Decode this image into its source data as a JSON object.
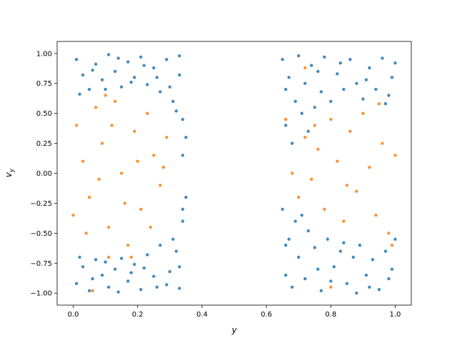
{
  "chart_data": {
    "type": "scatter",
    "xlabel": "y",
    "ylabel": "vy",
    "xlim": [
      -0.05,
      1.05
    ],
    "ylim": [
      -1.1,
      1.1
    ],
    "xticks": [
      {
        "value": 0,
        "label": "0.0"
      },
      {
        "value": 0.2,
        "label": "0.2"
      },
      {
        "value": 0.4,
        "label": "0.4"
      },
      {
        "value": 0.6,
        "label": "0.6"
      },
      {
        "value": 0.8,
        "label": "0.8"
      },
      {
        "value": 1,
        "label": "1.0"
      }
    ],
    "yticks": [
      {
        "value": -1,
        "label": "−1.00"
      },
      {
        "value": -0.75,
        "label": "−0.75"
      },
      {
        "value": -0.5,
        "label": "−0.50"
      },
      {
        "value": -0.25,
        "label": "−0.25"
      },
      {
        "value": 0,
        "label": "0.00"
      },
      {
        "value": 0.25,
        "label": "0.25"
      },
      {
        "value": 0.5,
        "label": "0.50"
      },
      {
        "value": 0.75,
        "label": "0.75"
      },
      {
        "value": 1,
        "label": "1.00"
      }
    ],
    "grid": false,
    "series": [
      {
        "color": "#1f77b4",
        "x": [
          0.01,
          0.03,
          0.05,
          0.07,
          0.09,
          0.11,
          0.13,
          0.15,
          0.17,
          0.19,
          0.21,
          0.23,
          0.25,
          0.27,
          0.29,
          0.31,
          0.33,
          0.34,
          0.35,
          0.34,
          0.32,
          0.02,
          0.06,
          0.1,
          0.14,
          0.18,
          0.22,
          0.26,
          0.3,
          0.33,
          0.01,
          0.03,
          0.05,
          0.07,
          0.09,
          0.11,
          0.13,
          0.15,
          0.17,
          0.19,
          0.21,
          0.23,
          0.25,
          0.27,
          0.29,
          0.31,
          0.33,
          0.34,
          0.35,
          0.34,
          0.32,
          0.02,
          0.06,
          0.1,
          0.14,
          0.18,
          0.22,
          0.26,
          0.3,
          0.33,
          0.65,
          0.66,
          0.67,
          0.68,
          0.69,
          0.7,
          0.71,
          0.72,
          0.74,
          0.75,
          0.77,
          0.78,
          0.8,
          0.82,
          0.84,
          0.86,
          0.88,
          0.9,
          0.92,
          0.94,
          0.96,
          0.98,
          0.99,
          1.0,
          0.73,
          0.76,
          0.83,
          0.91,
          0.97,
          0.66,
          0.65,
          0.66,
          0.67,
          0.68,
          0.69,
          0.7,
          0.72,
          0.73,
          0.75,
          0.77,
          0.79,
          0.81,
          0.83,
          0.85,
          0.87,
          0.89,
          0.91,
          0.93,
          0.95,
          0.97,
          0.99,
          1.0,
          0.71,
          0.76,
          0.84,
          0.92,
          0.98,
          0.66,
          0.8,
          0.88
        ],
        "values": [
          0.95,
          0.82,
          0.7,
          0.91,
          0.78,
          0.99,
          0.85,
          0.72,
          0.93,
          0.8,
          0.97,
          0.74,
          0.88,
          0.68,
          0.95,
          0.6,
          0.82,
          0.45,
          0.3,
          0.15,
          0.52,
          0.66,
          0.86,
          0.7,
          0.96,
          0.76,
          0.9,
          0.8,
          0.72,
          0.98,
          -0.92,
          -0.78,
          -0.98,
          -0.72,
          -0.85,
          -0.95,
          -0.8,
          -0.71,
          -0.9,
          -0.76,
          -0.97,
          -0.68,
          -0.86,
          -0.6,
          -0.93,
          -0.55,
          -0.78,
          -0.4,
          -0.2,
          -0.3,
          -0.65,
          -0.7,
          -0.88,
          -0.74,
          -0.99,
          -0.83,
          -0.79,
          -0.95,
          -0.82,
          -0.96,
          0.95,
          0.4,
          0.8,
          0.25,
          0.6,
          0.98,
          0.5,
          0.75,
          0.9,
          0.55,
          0.68,
          0.97,
          0.6,
          0.83,
          0.7,
          0.95,
          0.75,
          0.62,
          0.88,
          0.7,
          0.96,
          0.65,
          0.8,
          0.92,
          0.35,
          0.85,
          0.92,
          0.78,
          0.58,
          0.7,
          -0.3,
          -0.85,
          -0.55,
          -0.95,
          -0.4,
          -0.7,
          -0.88,
          -0.48,
          -0.62,
          -0.98,
          -0.55,
          -0.78,
          -0.65,
          -0.92,
          -0.7,
          -0.6,
          -0.85,
          -0.72,
          -0.97,
          -0.65,
          -0.8,
          -0.55,
          -0.35,
          -0.8,
          -0.58,
          -0.95,
          -0.88,
          -0.6,
          -0.9,
          -1.0
        ]
      },
      {
        "color": "#ff7f0e",
        "x": [
          0.01,
          0.03,
          0.05,
          0.07,
          0.09,
          0.11,
          0.13,
          0.15,
          0.17,
          0.19,
          0.21,
          0.23,
          0.25,
          0.27,
          0.29,
          0.04,
          0.08,
          0.12,
          0.16,
          0.2,
          0.24,
          0.28,
          0.0,
          0.1,
          0.18,
          0.06,
          0.11,
          0.66,
          0.68,
          0.7,
          0.72,
          0.74,
          0.76,
          0.78,
          0.8,
          0.82,
          0.84,
          0.86,
          0.88,
          0.9,
          0.92,
          0.94,
          0.96,
          0.98,
          1.0,
          0.75,
          0.85,
          0.95,
          0.99,
          0.8,
          0.72
        ],
        "values": [
          0.4,
          0.1,
          -0.2,
          0.55,
          0.25,
          -0.45,
          0.6,
          0.0,
          -0.6,
          0.35,
          -0.3,
          0.5,
          0.15,
          -0.1,
          0.3,
          -0.5,
          -0.05,
          0.4,
          -0.25,
          0.1,
          -0.45,
          0.05,
          -0.35,
          0.65,
          -0.7,
          -0.98,
          -0.7,
          0.45,
          0.0,
          -0.2,
          0.3,
          -0.05,
          0.2,
          -0.3,
          0.45,
          0.1,
          -0.4,
          0.35,
          -0.15,
          0.5,
          0.05,
          -0.35,
          0.25,
          -0.5,
          0.15,
          0.4,
          -0.1,
          0.58,
          -0.6,
          -0.95,
          0.88
        ]
      }
    ]
  }
}
